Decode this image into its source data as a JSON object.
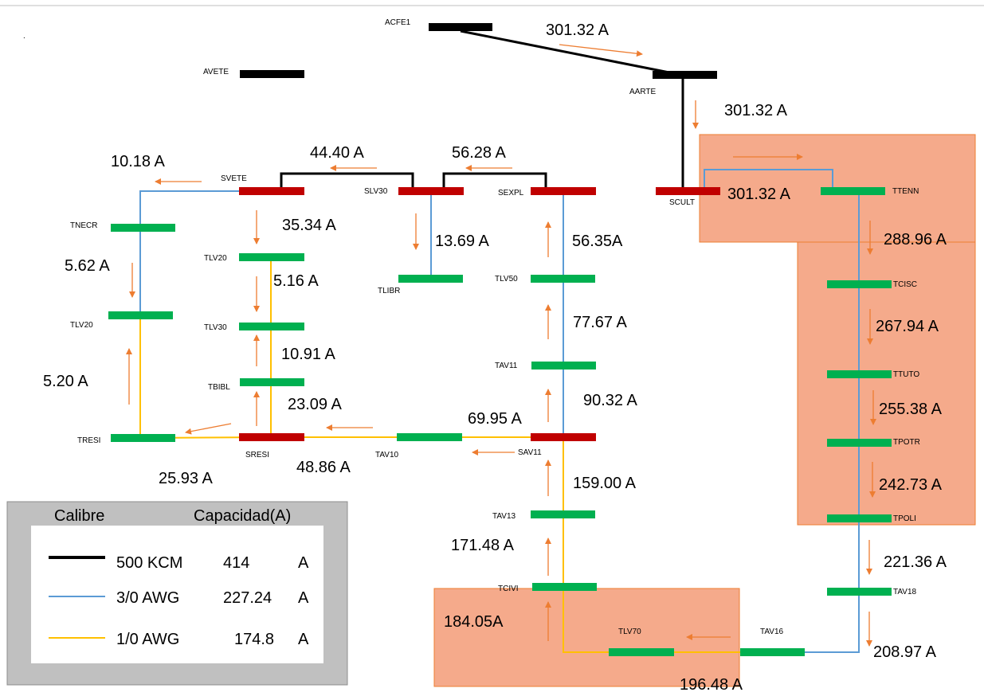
{
  "buses": {
    "ACFE1": "ACFE1",
    "AVETE": "AVETE",
    "AARTE": "AARTE",
    "SVETE": "SVETE",
    "SLV30": "SLV30",
    "SEXPL": "SEXPL",
    "SCULT": "SCULT",
    "TTENN": "TTENN",
    "TNECR": "TNECR",
    "TLV20_L": "TLV20",
    "TLV20_M": "TLV20",
    "TLV30": "TLV30",
    "TBIBL": "TBIBL",
    "TRESI": "TRESI",
    "SRESI": "SRESI",
    "TAV10": "TAV10",
    "SAV11": "SAV11",
    "TLIBR": "TLIBR",
    "TLV50": "TLV50",
    "TAV11": "TAV11",
    "TAV13": "TAV13",
    "TCIVI": "TCIVI",
    "TLV70": "TLV70",
    "TAV16": "TAV16",
    "TAV18": "TAV18",
    "TCISC": "TCISC",
    "TTUTO": "TTUTO",
    "TPOTR": "TPOTR",
    "TPOLI": "TPOLI"
  },
  "currents": {
    "acfe1_aarte": "301.32 A",
    "aarte_scult": "301.32 A",
    "scult_ttenn": "301.32 A",
    "svete_tnecr": "10.18 A",
    "slv30_svete": "44.40 A",
    "sexpl_slv30": "56.28 A",
    "svete_tlv20": "35.34 A",
    "slv30_tlibr": "13.69 A",
    "tlv50_sexpl": "56.35A",
    "tnecr_tlv20": "5.62 A",
    "tlv30_tlv20": "5.16 A",
    "tav11_tlv50": "77.67 A",
    "tbibl_tlv30": "10.91 A",
    "tresi_tlv20": "5.20 A",
    "sresi_tbibl": "23.09 A",
    "sav11_tav11": "90.32 A",
    "tav10_sresi": "69.95 A",
    "sresi_tresi": "25.93 A",
    "sav11_tav10": "48.86 A",
    "tav13_sav11": "159.00 A",
    "tcivi_tav13": "171.48 A",
    "tlv70_tcivi": "184.05A",
    "tav16_tlv70": "196.48 A",
    "tav18_tav16": "208.97 A",
    "tpoli_tav18": "221.36 A",
    "ttenn_tcisc": "288.96 A",
    "tcisc_ttuto": "267.94 A",
    "ttuto_tpotr": "255.38 A",
    "tpotr_tpoli": "242.73 A"
  },
  "legend": {
    "header_calibre": "Calibre",
    "header_capacidad": "Capacidad(A)",
    "rows": [
      {
        "calibre": "500 KCM",
        "capacidad": "414",
        "unit": "A",
        "color": "#000000"
      },
      {
        "calibre": "3/0 AWG",
        "capacidad": "227.24",
        "unit": "A",
        "color": "#5b9bd5"
      },
      {
        "calibre": "1/0 AWG",
        "capacidad": "174.8",
        "unit": "A",
        "color": "#ffc000"
      }
    ]
  },
  "colors": {
    "bus_black": "#000000",
    "bus_red": "#c00000",
    "bus_green": "#00b050",
    "arrow": "#ed7d31",
    "highlight_fill": "#f4a17e",
    "highlight_border": "#ed7d31"
  }
}
